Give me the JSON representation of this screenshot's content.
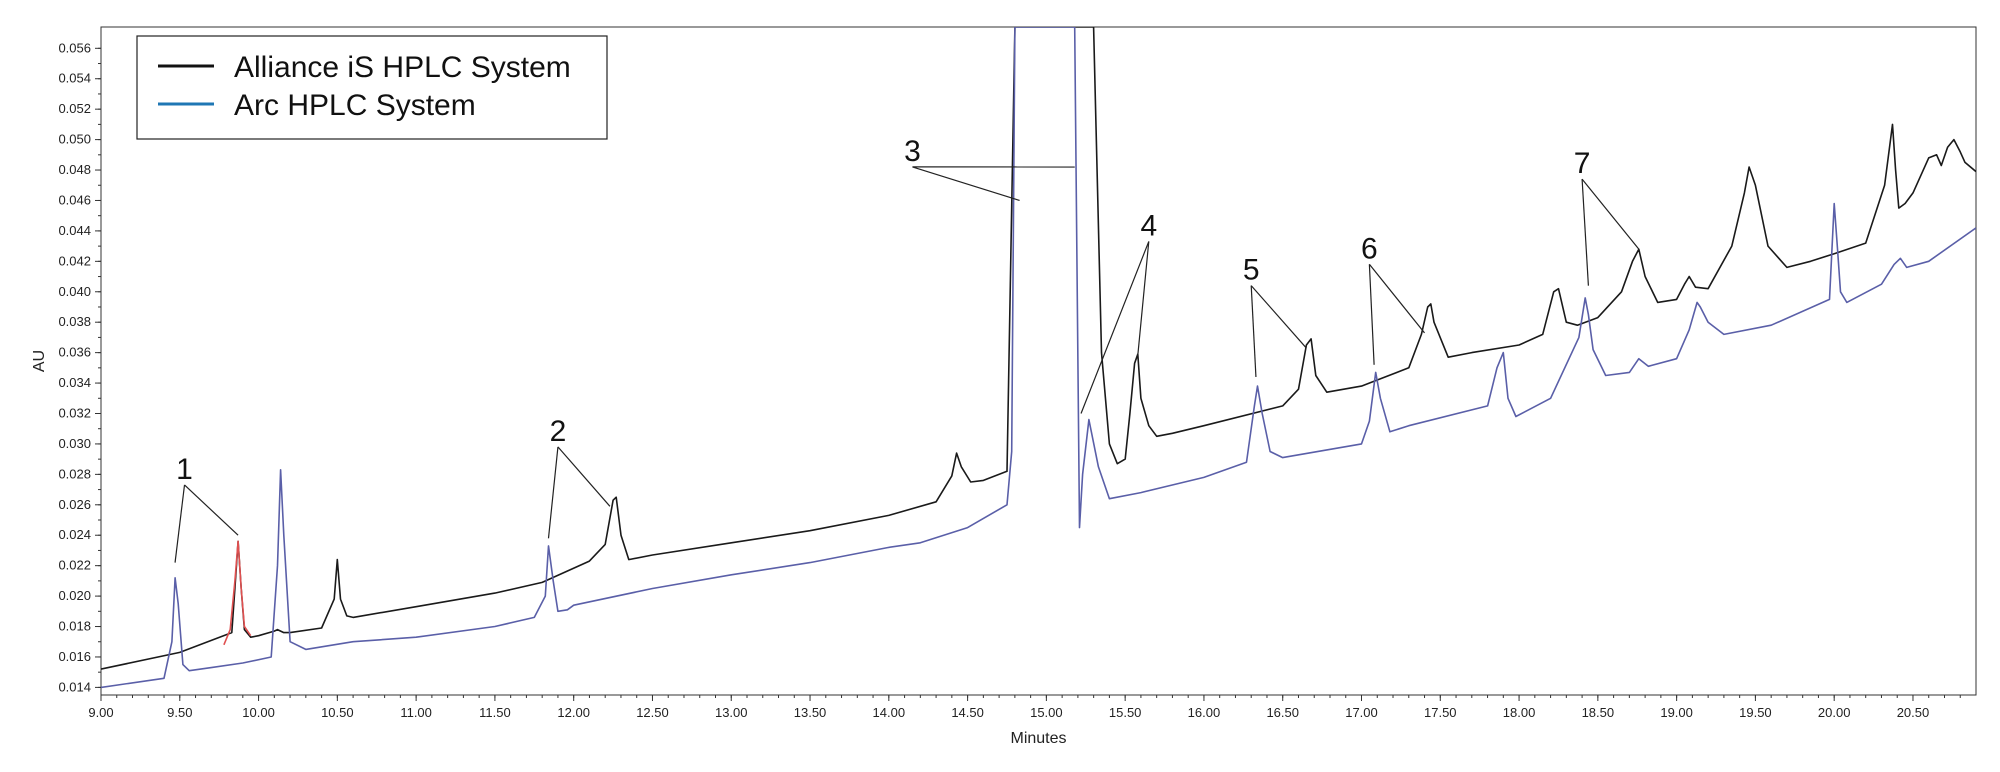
{
  "chart_data": {
    "type": "line",
    "title": "",
    "xlabel": "Minutes",
    "ylabel": "AU",
    "xlim": [
      9.0,
      20.9
    ],
    "ylim": [
      0.0135,
      0.0574
    ],
    "x_ticks": [
      "9.00",
      "9.50",
      "10.00",
      "10.50",
      "11.00",
      "11.50",
      "12.00",
      "12.50",
      "13.00",
      "13.50",
      "14.00",
      "14.50",
      "15.00",
      "15.50",
      "16.00",
      "16.50",
      "17.00",
      "17.50",
      "18.00",
      "18.50",
      "19.00",
      "19.50",
      "20.00",
      "20.50"
    ],
    "y_ticks": [
      "0.014",
      "0.016",
      "0.018",
      "0.020",
      "0.022",
      "0.024",
      "0.026",
      "0.028",
      "0.030",
      "0.032",
      "0.034",
      "0.036",
      "0.038",
      "0.040",
      "0.042",
      "0.044",
      "0.046",
      "0.048",
      "0.050",
      "0.052",
      "0.054",
      "0.056"
    ],
    "legend": {
      "position": "top-left",
      "entries": [
        {
          "label": "Alliance iS HPLC System",
          "color": "#111111"
        },
        {
          "label": "Arc HPLC System",
          "color": "#1f77b4"
        }
      ]
    },
    "series": [
      {
        "name": "Alliance iS HPLC System",
        "color": "#1a1a1a",
        "x": [
          9.0,
          9.5,
          9.83,
          9.85,
          9.87,
          9.89,
          9.91,
          9.95,
          10.0,
          10.1,
          10.12,
          10.14,
          10.16,
          10.2,
          10.4,
          10.48,
          10.5,
          10.52,
          10.56,
          10.6,
          11.0,
          11.5,
          11.8,
          12.1,
          12.2,
          12.25,
          12.27,
          12.3,
          12.35,
          12.5,
          13.0,
          13.5,
          14.0,
          14.3,
          14.4,
          14.43,
          14.46,
          14.52,
          14.6,
          14.75,
          14.8,
          14.83,
          15.1,
          15.15,
          15.18,
          15.3,
          15.35,
          15.4,
          15.45,
          15.5,
          15.53,
          15.56,
          15.58,
          15.6,
          15.65,
          15.7,
          15.8,
          16.0,
          16.5,
          16.6,
          16.65,
          16.68,
          16.71,
          16.78,
          17.0,
          17.3,
          17.38,
          17.42,
          17.44,
          17.46,
          17.55,
          17.7,
          18.0,
          18.15,
          18.22,
          18.25,
          18.3,
          18.37,
          18.5,
          18.65,
          18.72,
          18.76,
          18.8,
          18.88,
          19.0,
          19.05,
          19.08,
          19.12,
          19.2,
          19.35,
          19.43,
          19.46,
          19.5,
          19.58,
          19.7,
          19.85,
          20.0,
          20.2,
          20.32,
          20.37,
          20.39,
          20.41,
          20.45,
          20.5,
          20.6,
          20.65,
          20.68,
          20.72,
          20.76,
          20.8,
          20.83,
          20.9
        ],
        "y": [
          0.0152,
          0.0163,
          0.0176,
          0.0205,
          0.0236,
          0.0205,
          0.0178,
          0.0173,
          0.0174,
          0.0177,
          0.0178,
          0.0177,
          0.0176,
          0.0176,
          0.0179,
          0.0198,
          0.0224,
          0.0198,
          0.0187,
          0.0186,
          0.0193,
          0.0202,
          0.0209,
          0.0223,
          0.0234,
          0.0263,
          0.0265,
          0.024,
          0.0224,
          0.0227,
          0.0235,
          0.0243,
          0.0253,
          0.0262,
          0.0279,
          0.0294,
          0.0285,
          0.0275,
          0.0276,
          0.0282,
          0.0574,
          0.0574,
          0.0574,
          0.0574,
          0.0574,
          0.0574,
          0.036,
          0.03,
          0.0287,
          0.029,
          0.032,
          0.0353,
          0.0359,
          0.033,
          0.0312,
          0.0305,
          0.0307,
          0.0312,
          0.0325,
          0.0336,
          0.0365,
          0.0369,
          0.0345,
          0.0334,
          0.0338,
          0.035,
          0.0372,
          0.039,
          0.0392,
          0.038,
          0.0357,
          0.036,
          0.0365,
          0.0372,
          0.04,
          0.0402,
          0.038,
          0.0378,
          0.0383,
          0.04,
          0.042,
          0.0428,
          0.041,
          0.0393,
          0.0395,
          0.0405,
          0.041,
          0.0403,
          0.0402,
          0.043,
          0.0465,
          0.0482,
          0.047,
          0.043,
          0.0416,
          0.042,
          0.0425,
          0.0432,
          0.047,
          0.051,
          0.048,
          0.0455,
          0.0458,
          0.0465,
          0.0488,
          0.049,
          0.0483,
          0.0495,
          0.05,
          0.0492,
          0.0485,
          0.0479
        ]
      },
      {
        "name": "Arc HPLC System",
        "color": "#5a5fa8",
        "x": [
          9.0,
          9.4,
          9.45,
          9.47,
          9.49,
          9.52,
          9.56,
          9.7,
          9.9,
          10.08,
          10.12,
          10.14,
          10.16,
          10.2,
          10.3,
          10.6,
          11.0,
          11.5,
          11.75,
          11.82,
          11.84,
          11.87,
          11.9,
          11.96,
          12.0,
          12.5,
          13.0,
          13.5,
          14.0,
          14.2,
          14.5,
          14.75,
          14.78,
          14.8,
          14.83,
          14.9,
          14.95,
          15.0,
          15.05,
          15.12,
          15.15,
          15.18,
          15.21,
          15.23,
          15.27,
          15.33,
          15.4,
          15.6,
          16.0,
          16.27,
          16.32,
          16.34,
          16.37,
          16.42,
          16.5,
          17.0,
          17.05,
          17.09,
          17.12,
          17.18,
          17.3,
          17.8,
          17.86,
          17.9,
          17.93,
          17.98,
          18.2,
          18.38,
          18.42,
          18.44,
          18.47,
          18.55,
          18.7,
          18.76,
          18.82,
          19.0,
          19.08,
          19.13,
          19.15,
          19.2,
          19.3,
          19.6,
          19.97,
          20.0,
          20.02,
          20.04,
          20.08,
          20.3,
          20.38,
          20.42,
          20.46,
          20.6,
          20.9
        ],
        "y": [
          0.014,
          0.0146,
          0.017,
          0.0212,
          0.0195,
          0.0155,
          0.0151,
          0.0153,
          0.0156,
          0.016,
          0.022,
          0.0283,
          0.024,
          0.017,
          0.0165,
          0.017,
          0.0173,
          0.018,
          0.0186,
          0.02,
          0.0233,
          0.021,
          0.019,
          0.0191,
          0.0194,
          0.0205,
          0.0214,
          0.0222,
          0.0232,
          0.0235,
          0.0245,
          0.026,
          0.0295,
          0.0574,
          0.0574,
          0.0574,
          0.0574,
          0.0574,
          0.0574,
          0.0574,
          0.0574,
          0.0574,
          0.0245,
          0.028,
          0.0316,
          0.0285,
          0.0264,
          0.0268,
          0.0278,
          0.0288,
          0.0325,
          0.0338,
          0.032,
          0.0295,
          0.0291,
          0.03,
          0.0315,
          0.0347,
          0.033,
          0.0308,
          0.0312,
          0.0325,
          0.035,
          0.036,
          0.033,
          0.0318,
          0.033,
          0.037,
          0.0396,
          0.0385,
          0.0362,
          0.0345,
          0.0347,
          0.0356,
          0.0351,
          0.0356,
          0.0375,
          0.0393,
          0.039,
          0.038,
          0.0372,
          0.0378,
          0.0395,
          0.0458,
          0.043,
          0.04,
          0.0393,
          0.0405,
          0.0418,
          0.0422,
          0.0416,
          0.042,
          0.0442
        ]
      },
      {
        "name": "",
        "color": "#e05050",
        "x": [
          9.78,
          9.82,
          9.85,
          9.87,
          9.89,
          9.91,
          9.95
        ],
        "y": [
          0.0168,
          0.0178,
          0.021,
          0.0236,
          0.0205,
          0.018,
          0.0174
        ]
      }
    ],
    "annotations": [
      {
        "label": "1",
        "text_x": 9.53,
        "text_y": 0.0277,
        "targets": [
          [
            9.47,
            0.0222
          ],
          [
            9.87,
            0.024
          ]
        ]
      },
      {
        "label": "2",
        "text_x": 11.9,
        "text_y": 0.0302,
        "targets": [
          [
            11.84,
            0.0238
          ],
          [
            12.23,
            0.0259
          ]
        ]
      },
      {
        "label": "3",
        "text_x": 14.15,
        "text_y": 0.0486,
        "targets": [
          [
            14.83,
            0.046
          ],
          [
            15.18,
            0.0482
          ]
        ]
      },
      {
        "label": "4",
        "text_x": 15.65,
        "text_y": 0.0437,
        "targets": [
          [
            15.22,
            0.032
          ],
          [
            15.58,
            0.0358
          ]
        ]
      },
      {
        "label": "5",
        "text_x": 16.3,
        "text_y": 0.0408,
        "targets": [
          [
            16.33,
            0.0344
          ],
          [
            16.65,
            0.0363
          ]
        ]
      },
      {
        "label": "6",
        "text_x": 17.05,
        "text_y": 0.0422,
        "targets": [
          [
            17.08,
            0.0352
          ],
          [
            17.4,
            0.0373
          ]
        ]
      },
      {
        "label": "7",
        "text_x": 18.4,
        "text_y": 0.0478,
        "targets": [
          [
            18.44,
            0.0404
          ],
          [
            18.76,
            0.0428
          ]
        ]
      }
    ],
    "grid": false
  }
}
